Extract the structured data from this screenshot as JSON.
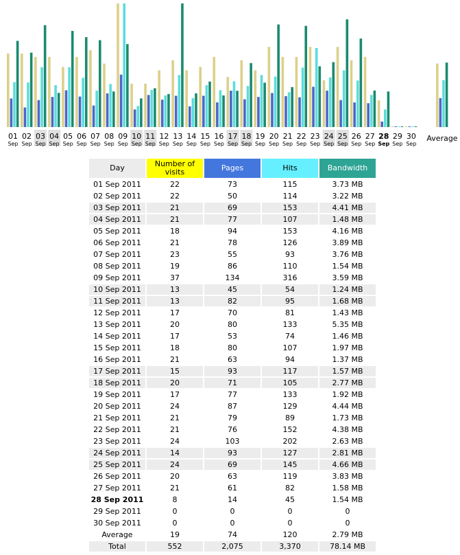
{
  "chart_data": {
    "type": "bar",
    "categories": [
      "01",
      "02",
      "03",
      "04",
      "05",
      "06",
      "07",
      "08",
      "09",
      "10",
      "11",
      "12",
      "13",
      "14",
      "15",
      "16",
      "17",
      "18",
      "19",
      "20",
      "21",
      "22",
      "23",
      "24",
      "25",
      "26",
      "27",
      "28",
      "29",
      "30"
    ],
    "category_months": [
      "Sep",
      "Sep",
      "Sep",
      "Sep",
      "Sep",
      "Sep",
      "Sep",
      "Sep",
      "Sep",
      "Sep",
      "Sep",
      "Sep",
      "Sep",
      "Sep",
      "Sep",
      "Sep",
      "Sep",
      "Sep",
      "Sep",
      "Sep",
      "Sep",
      "Sep",
      "Sep",
      "Sep",
      "Sep",
      "Sep",
      "Sep",
      "Sep",
      "Sep",
      "Sep"
    ],
    "weekend": [
      false,
      false,
      true,
      true,
      false,
      false,
      false,
      false,
      false,
      true,
      true,
      false,
      false,
      false,
      false,
      false,
      true,
      true,
      false,
      false,
      false,
      false,
      false,
      true,
      true,
      false,
      false,
      false,
      false,
      false
    ],
    "today": "28",
    "series": [
      {
        "name": "Number of visits",
        "color": "#dcd08a",
        "header_color": "#ffff00",
        "values": [
          22,
          22,
          21,
          21,
          18,
          21,
          23,
          19,
          37,
          13,
          13,
          17,
          20,
          17,
          18,
          21,
          15,
          20,
          17,
          24,
          21,
          21,
          24,
          14,
          24,
          20,
          21,
          8,
          0,
          0
        ],
        "average": 19,
        "total": 552
      },
      {
        "name": "Pages",
        "color": "#4a68c8",
        "header_color": "#4477dd",
        "values": [
          73,
          50,
          69,
          77,
          94,
          78,
          55,
          86,
          134,
          45,
          82,
          70,
          80,
          53,
          80,
          63,
          93,
          71,
          77,
          87,
          79,
          76,
          103,
          93,
          69,
          63,
          61,
          14,
          0,
          0
        ],
        "average": 74,
        "total": 2075,
        "total_label": "2,075"
      },
      {
        "name": "Hits",
        "color": "#5cdcdc",
        "header_color": "#66f0ff",
        "values": [
          115,
          114,
          153,
          107,
          153,
          126,
          93,
          110,
          316,
          54,
          95,
          81,
          133,
          74,
          107,
          94,
          117,
          105,
          133,
          129,
          89,
          152,
          202,
          127,
          145,
          119,
          82,
          45,
          0,
          0
        ],
        "average": 120,
        "total": 3370,
        "total_label": "3,370"
      },
      {
        "name": "Bandwidth",
        "color": "#1a8a6e",
        "header_color": "#2ea495",
        "values": [
          3.73,
          3.22,
          4.41,
          1.48,
          4.16,
          3.89,
          3.76,
          1.54,
          3.59,
          1.24,
          1.68,
          1.43,
          5.35,
          1.46,
          1.97,
          1.37,
          1.57,
          2.77,
          1.92,
          4.44,
          1.73,
          4.38,
          2.63,
          2.81,
          4.66,
          3.83,
          1.58,
          1.54,
          0,
          0
        ],
        "value_labels": [
          "3.73 MB",
          "3.22 MB",
          "4.41 MB",
          "1.48 MB",
          "4.16 MB",
          "3.89 MB",
          "3.76 MB",
          "1.54 MB",
          "3.59 MB",
          "1.24 MB",
          "1.68 MB",
          "1.43 MB",
          "5.35 MB",
          "1.46 MB",
          "1.97 MB",
          "1.37 MB",
          "1.57 MB",
          "2.77 MB",
          "1.92 MB",
          "4.44 MB",
          "1.73 MB",
          "4.38 MB",
          "2.63 MB",
          "2.81 MB",
          "4.66 MB",
          "3.83 MB",
          "1.58 MB",
          "1.54 MB",
          "0",
          "0"
        ],
        "average": 2.79,
        "average_label": "2.79 MB",
        "total": 78.14,
        "total_label": "78.14 MB"
      }
    ]
  },
  "table": {
    "day_header": "Day",
    "days": [
      "01 Sep 2011",
      "02 Sep 2011",
      "03 Sep 2011",
      "04 Sep 2011",
      "05 Sep 2011",
      "06 Sep 2011",
      "07 Sep 2011",
      "08 Sep 2011",
      "09 Sep 2011",
      "10 Sep 2011",
      "11 Sep 2011",
      "12 Sep 2011",
      "13 Sep 2011",
      "14 Sep 2011",
      "15 Sep 2011",
      "16 Sep 2011",
      "17 Sep 2011",
      "18 Sep 2011",
      "19 Sep 2011",
      "20 Sep 2011",
      "21 Sep 2011",
      "22 Sep 2011",
      "23 Sep 2011",
      "24 Sep 2011",
      "25 Sep 2011",
      "26 Sep 2011",
      "27 Sep 2011",
      "28 Sep 2011",
      "29 Sep 2011",
      "30 Sep 2011"
    ],
    "average": "Average",
    "total": "Total"
  }
}
